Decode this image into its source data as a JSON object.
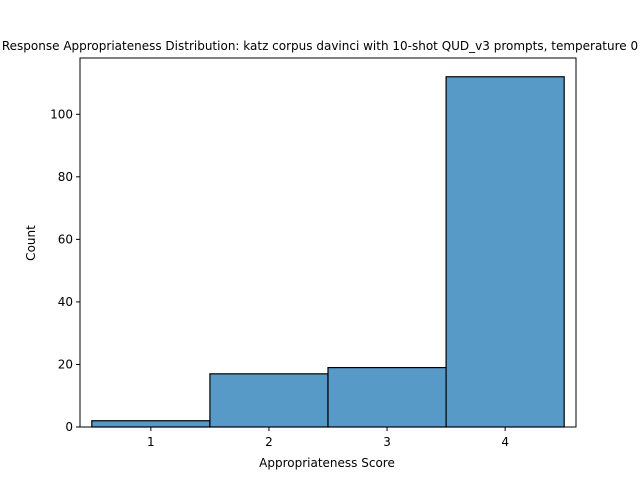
{
  "chart_data": {
    "type": "bar",
    "title": "Response Appropriateness Distribution: katz corpus davinci with 10-shot QUD_v3 prompts, temperature 0",
    "xlabel": "Appropriateness Score",
    "ylabel": "Count",
    "categories": [
      "1",
      "2",
      "3",
      "4"
    ],
    "values": [
      2,
      17,
      19,
      112
    ],
    "xlim": [
      0.4,
      4.6
    ],
    "ylim": [
      0,
      118
    ],
    "yticks": [
      0,
      20,
      40,
      60,
      80,
      100
    ],
    "bar_color": "#5799c7",
    "edge_color": "#000000",
    "grid": false,
    "legend": "none"
  }
}
